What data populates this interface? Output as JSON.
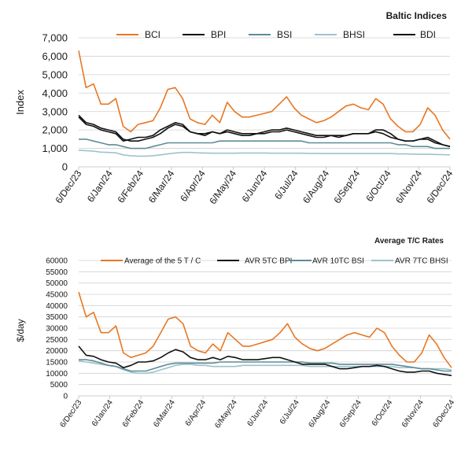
{
  "colors": {
    "orange": "#E87722",
    "black": "#111111",
    "teal": "#5E8C97",
    "lightblue": "#9CC3CC",
    "grid": "#D0D0D0"
  },
  "chart_data": [
    {
      "type": "line",
      "title": "Baltic Indices",
      "ylabel": "Index",
      "xlabel": "",
      "ylim": [
        0,
        7000
      ],
      "yticks": [
        "0",
        "1,000",
        "2,000",
        "3,000",
        "4,000",
        "5,000",
        "6,000",
        "7,000"
      ],
      "xticks": [
        "6/Dec/23",
        "6/Jan/24",
        "6/Feb/24",
        "6/Mar/24",
        "6/Apr/24",
        "6/May/24",
        "6/Jun/24",
        "6/Jul/24",
        "6/Aug/24",
        "6/Sep/24",
        "6/Oct/24",
        "6/Nov/24",
        "6/Dec/24"
      ],
      "grid": true,
      "legend_position": "top",
      "series": [
        {
          "name": "BCI",
          "color": "orange",
          "values": [
            6300,
            4300,
            4500,
            3400,
            3400,
            3700,
            2200,
            1900,
            2300,
            2400,
            2500,
            3200,
            4200,
            4300,
            3700,
            2600,
            2400,
            2300,
            2800,
            2400,
            3500,
            3000,
            2700,
            2700,
            2800,
            2900,
            3000,
            3400,
            3800,
            3200,
            2800,
            2600,
            2400,
            2500,
            2700,
            3000,
            3300,
            3400,
            3200,
            3100,
            3700,
            3400,
            2600,
            2200,
            1900,
            1900,
            2300,
            3200,
            2800,
            2000,
            1500
          ]
        },
        {
          "name": "BPI",
          "color": "black",
          "values": [
            2700,
            2300,
            2200,
            2000,
            1900,
            1800,
            1400,
            1500,
            1600,
            1600,
            1700,
            2000,
            2200,
            2400,
            2300,
            1900,
            1800,
            1800,
            1900,
            1800,
            2000,
            1900,
            1800,
            1800,
            1800,
            1900,
            2000,
            2000,
            2100,
            2000,
            1900,
            1800,
            1700,
            1700,
            1700,
            1600,
            1700,
            1800,
            1800,
            1800,
            2000,
            2000,
            1800,
            1500,
            1400,
            1400,
            1500,
            1500,
            1300,
            1200,
            1100
          ]
        },
        {
          "name": "BSI",
          "color": "teal",
          "values": [
            1500,
            1500,
            1400,
            1300,
            1200,
            1200,
            1100,
            1000,
            1000,
            1000,
            1100,
            1200,
            1300,
            1300,
            1300,
            1300,
            1300,
            1300,
            1300,
            1400,
            1400,
            1400,
            1400,
            1400,
            1400,
            1400,
            1400,
            1400,
            1400,
            1400,
            1400,
            1300,
            1300,
            1300,
            1300,
            1300,
            1300,
            1300,
            1300,
            1300,
            1300,
            1300,
            1300,
            1200,
            1200,
            1100,
            1100,
            1100,
            1000,
            1000,
            1000
          ]
        },
        {
          "name": "BHSI",
          "color": "lightblue",
          "values": [
            900,
            880,
            850,
            800,
            780,
            760,
            650,
            600,
            580,
            580,
            600,
            650,
            700,
            750,
            780,
            780,
            760,
            750,
            740,
            740,
            740,
            740,
            750,
            750,
            750,
            750,
            740,
            740,
            740,
            740,
            740,
            730,
            730,
            720,
            720,
            720,
            720,
            720,
            720,
            720,
            720,
            720,
            720,
            700,
            700,
            690,
            680,
            680,
            670,
            660,
            650
          ]
        },
        {
          "name": "BDI",
          "color": "black",
          "values": [
            2800,
            2400,
            2300,
            2100,
            2000,
            1900,
            1500,
            1400,
            1400,
            1500,
            1600,
            1800,
            2100,
            2300,
            2200,
            1900,
            1800,
            1700,
            1900,
            1800,
            1900,
            1800,
            1700,
            1700,
            1800,
            1800,
            1900,
            1900,
            2000,
            1900,
            1800,
            1700,
            1600,
            1600,
            1700,
            1700,
            1700,
            1800,
            1800,
            1800,
            1900,
            1800,
            1600,
            1500,
            1400,
            1400,
            1500,
            1600,
            1400,
            1200,
            1100
          ]
        }
      ]
    },
    {
      "type": "line",
      "title": "Average T/C Rates",
      "ylabel": "$/day",
      "xlabel": "",
      "ylim": [
        0,
        60000
      ],
      "yticks": [
        "0",
        "5000",
        "10000",
        "15000",
        "20000",
        "25000",
        "30000",
        "35000",
        "40000",
        "45000",
        "50000",
        "55000",
        "60000"
      ],
      "xticks": [
        "6/Dec/23",
        "6/Jan/24",
        "6/Feb/24",
        "6/Mar/24",
        "6/Apr/24",
        "6/May/24",
        "6/Jun/24",
        "6/Jul/24",
        "6/Aug/24",
        "6/Sep/24",
        "6/Oct/24",
        "6/Nov/24",
        "6/Dec/24"
      ],
      "grid": true,
      "legend_position": "top",
      "series": [
        {
          "name": "Average of the 5 T / C",
          "color": "orange",
          "values": [
            46000,
            35000,
            37000,
            28000,
            28000,
            31000,
            19000,
            17000,
            18000,
            19000,
            22000,
            28000,
            34000,
            35000,
            32000,
            22000,
            20000,
            19000,
            23000,
            20000,
            28000,
            25000,
            22000,
            22000,
            23000,
            24000,
            25000,
            28000,
            32000,
            26000,
            23000,
            21000,
            20000,
            21000,
            23000,
            25000,
            27000,
            28000,
            27000,
            26000,
            30000,
            28000,
            22000,
            18000,
            15000,
            15000,
            19000,
            27000,
            23000,
            17000,
            12500
          ]
        },
        {
          "name": "AVR 5TC BPI",
          "color": "black",
          "values": [
            22000,
            18000,
            17500,
            16000,
            15000,
            14500,
            12500,
            13500,
            15000,
            15000,
            15500,
            17000,
            19000,
            20500,
            19500,
            17000,
            16000,
            16000,
            17000,
            16000,
            17500,
            17000,
            16000,
            16000,
            16000,
            16500,
            17000,
            17000,
            16000,
            15000,
            14000,
            14000,
            14000,
            14000,
            13000,
            12000,
            12000,
            12500,
            13000,
            13000,
            13500,
            13000,
            12000,
            11000,
            10500,
            10500,
            11000,
            11000,
            10000,
            9500,
            9000
          ]
        },
        {
          "name": "AVR 10TC BSI",
          "color": "teal",
          "values": [
            16000,
            16000,
            15500,
            14500,
            13500,
            13000,
            12000,
            11000,
            11000,
            11000,
            12000,
            13000,
            14000,
            14500,
            14500,
            14500,
            14500,
            14500,
            14500,
            15000,
            15000,
            15000,
            15000,
            15000,
            15000,
            15000,
            15000,
            15000,
            15000,
            15000,
            15000,
            14500,
            14500,
            14500,
            14500,
            14000,
            14000,
            14000,
            14000,
            14000,
            14000,
            14000,
            14000,
            13500,
            13000,
            12500,
            12000,
            12000,
            11500,
            11000,
            11000
          ]
        },
        {
          "name": "AVR 7TC BHSI",
          "color": "lightblue",
          "values": [
            15500,
            15000,
            14500,
            14000,
            13500,
            13000,
            11500,
            10500,
            10000,
            10000,
            10500,
            11500,
            12500,
            13500,
            14000,
            14000,
            13500,
            13500,
            13000,
            13000,
            13000,
            13000,
            13500,
            13500,
            13500,
            13500,
            13500,
            13500,
            13500,
            13500,
            13500,
            13000,
            13000,
            13000,
            13000,
            13000,
            13000,
            13000,
            13000,
            13000,
            13000,
            13000,
            13000,
            12500,
            12500,
            12500,
            12000,
            12000,
            12000,
            12000,
            11500
          ]
        }
      ]
    }
  ]
}
